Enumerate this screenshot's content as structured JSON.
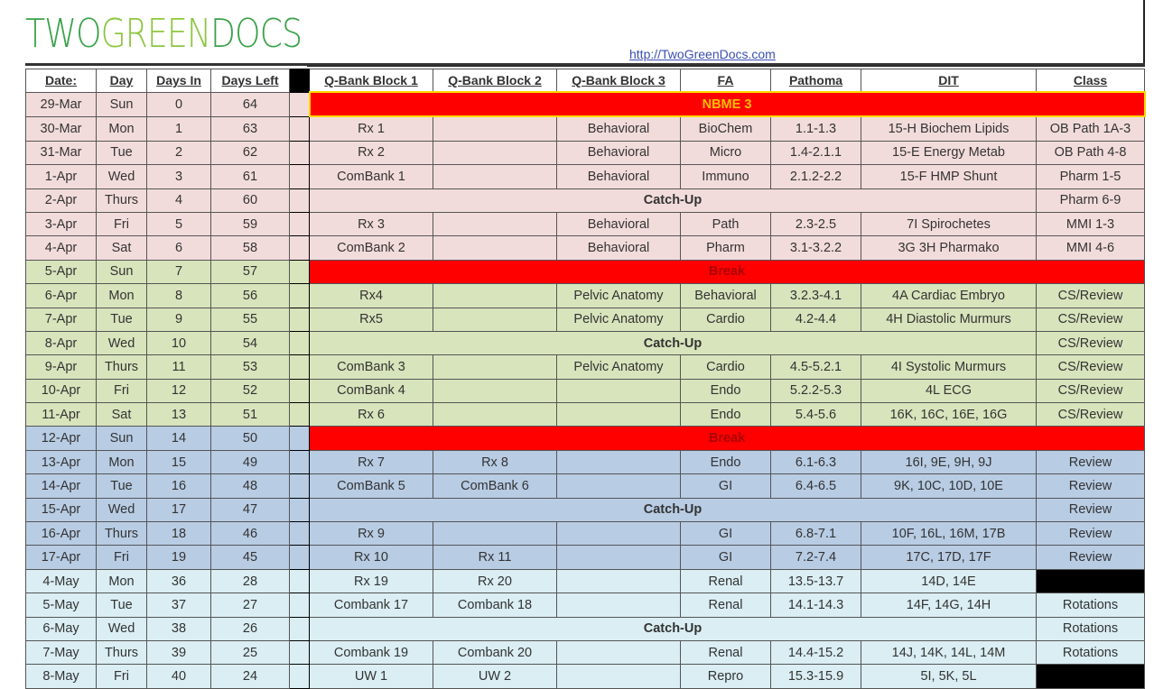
{
  "logo": {
    "part1": "TWO",
    "part2": "GREEN",
    "part3": "DOCS"
  },
  "link": "http://TwoGreenDocs.com",
  "headers": [
    "Date:",
    "Day",
    "Days In",
    "Days Left",
    "Q-Bank Block 1",
    "Q-Bank Block 2",
    "Q-Bank Block 3",
    "FA",
    "Pathoma",
    "DIT",
    "Class"
  ],
  "colors": {
    "pink": "#f2dcdb",
    "green": "#d8e4bc",
    "blue": "#b8cce4",
    "cyan": "#daeef3",
    "red": "#ff0000"
  },
  "rows": [
    {
      "theme": "pink",
      "date": "29-Mar",
      "day": "Sun",
      "in": "0",
      "left": "64",
      "span": {
        "type": "nbme",
        "label": "NBME 3"
      }
    },
    {
      "theme": "pink",
      "date": "30-Mar",
      "day": "Mon",
      "in": "1",
      "left": "63",
      "cells": [
        "Rx 1",
        "",
        "Behavioral",
        "BioChem",
        "1.1-1.3",
        "15-H Biochem Lipids",
        "OB Path 1A-3"
      ]
    },
    {
      "theme": "pink",
      "date": "31-Mar",
      "day": "Tue",
      "in": "2",
      "left": "62",
      "cells": [
        "Rx 2",
        "",
        "Behavioral",
        "Micro",
        "1.4-2.1.1",
        "15-E Energy Metab",
        "OB Path 4-8"
      ]
    },
    {
      "theme": "pink",
      "date": "1-Apr",
      "day": "Wed",
      "in": "3",
      "left": "61",
      "cells": [
        "ComBank 1",
        "",
        "Behavioral",
        "Immuno",
        "2.1.2-2.2",
        "15-F HMP Shunt",
        "Pharm 1-5"
      ]
    },
    {
      "theme": "pink",
      "date": "2-Apr",
      "day": "Thurs",
      "in": "4",
      "left": "60",
      "span": {
        "type": "catchup",
        "label": "Catch-Up"
      },
      "class": "Pharm 6-9"
    },
    {
      "theme": "pink",
      "date": "3-Apr",
      "day": "Fri",
      "in": "5",
      "left": "59",
      "cells": [
        "Rx 3",
        "",
        "Behavioral",
        "Path",
        "2.3-2.5",
        "7I Spirochetes",
        "MMI 1-3"
      ]
    },
    {
      "theme": "pink",
      "date": "4-Apr",
      "day": "Sat",
      "in": "6",
      "left": "58",
      "cells": [
        "ComBank 2",
        "",
        "Behavioral",
        "Pharm",
        "3.1-3.2.2",
        "3G 3H Pharmako",
        "MMI 4-6"
      ]
    },
    {
      "theme": "green",
      "date": "5-Apr",
      "day": "Sun",
      "in": "7",
      "left": "57",
      "span": {
        "type": "break",
        "label": "Break"
      }
    },
    {
      "theme": "green",
      "date": "6-Apr",
      "day": "Mon",
      "in": "8",
      "left": "56",
      "cells": [
        "Rx4",
        "",
        "Pelvic Anatomy",
        "Behavioral",
        "3.2.3-4.1",
        "4A Cardiac Embryo",
        "CS/Review"
      ]
    },
    {
      "theme": "green",
      "date": "7-Apr",
      "day": "Tue",
      "in": "9",
      "left": "55",
      "cells": [
        "Rx5",
        "",
        "Pelvic Anatomy",
        "Cardio",
        "4.2-4.4",
        "4H Diastolic Murmurs",
        "CS/Review"
      ]
    },
    {
      "theme": "green",
      "date": "8-Apr",
      "day": "Wed",
      "in": "10",
      "left": "54",
      "span": {
        "type": "catchup",
        "label": "Catch-Up"
      },
      "class": "CS/Review"
    },
    {
      "theme": "green",
      "date": "9-Apr",
      "day": "Thurs",
      "in": "11",
      "left": "53",
      "cells": [
        "ComBank 3",
        "",
        "Pelvic Anatomy",
        "Cardio",
        "4.5-5.2.1",
        "4I Systolic Murmurs",
        "CS/Review"
      ]
    },
    {
      "theme": "green",
      "date": "10-Apr",
      "day": "Fri",
      "in": "12",
      "left": "52",
      "cells": [
        "ComBank 4",
        "",
        "",
        "Endo",
        "5.2.2-5.3",
        "4L ECG",
        "CS/Review"
      ]
    },
    {
      "theme": "green",
      "date": "11-Apr",
      "day": "Sat",
      "in": "13",
      "left": "51",
      "cells": [
        "Rx 6",
        "",
        "",
        "Endo",
        "5.4-5.6",
        "16K, 16C, 16E, 16G",
        "CS/Review"
      ]
    },
    {
      "theme": "blue",
      "date": "12-Apr",
      "day": "Sun",
      "in": "14",
      "left": "50",
      "span": {
        "type": "break",
        "label": "Break"
      }
    },
    {
      "theme": "blue",
      "date": "13-Apr",
      "day": "Mon",
      "in": "15",
      "left": "49",
      "cells": [
        "Rx 7",
        "Rx 8",
        "",
        "Endo",
        "6.1-6.3",
        "16I, 9E, 9H, 9J",
        "Review"
      ]
    },
    {
      "theme": "blue",
      "date": "14-Apr",
      "day": "Tue",
      "in": "16",
      "left": "48",
      "cells": [
        "ComBank 5",
        "ComBank 6",
        "",
        "GI",
        "6.4-6.5",
        "9K, 10C, 10D, 10E",
        "Review"
      ]
    },
    {
      "theme": "blue",
      "date": "15-Apr",
      "day": "Wed",
      "in": "17",
      "left": "47",
      "span": {
        "type": "catchup",
        "label": "Catch-Up"
      },
      "class": "Review"
    },
    {
      "theme": "blue",
      "date": "16-Apr",
      "day": "Thurs",
      "in": "18",
      "left": "46",
      "cells": [
        "Rx 9",
        "",
        "",
        "GI",
        "6.8-7.1",
        "10F, 16L, 16M, 17B",
        "Review"
      ]
    },
    {
      "theme": "blue",
      "date": "17-Apr",
      "day": "Fri",
      "in": "19",
      "left": "45",
      "cells": [
        "Rx 10",
        "Rx 11",
        "",
        "GI",
        "7.2-7.4",
        "17C, 17D, 17F",
        "Review"
      ]
    },
    {
      "theme": "cyan",
      "date": "4-May",
      "day": "Mon",
      "in": "36",
      "left": "28",
      "cells": [
        "Rx 19",
        "Rx 20",
        "",
        "Renal",
        "13.5-13.7",
        "14D, 14E",
        null
      ]
    },
    {
      "theme": "cyan",
      "date": "5-May",
      "day": "Tue",
      "in": "37",
      "left": "27",
      "cells": [
        "Combank 17",
        "Combank 18",
        "",
        "Renal",
        "14.1-14.3",
        "14F, 14G, 14H",
        "Rotations"
      ]
    },
    {
      "theme": "cyan",
      "date": "6-May",
      "day": "Wed",
      "in": "38",
      "left": "26",
      "span": {
        "type": "catchup",
        "label": "Catch-Up"
      },
      "class": "Rotations"
    },
    {
      "theme": "cyan",
      "date": "7-May",
      "day": "Thurs",
      "in": "39",
      "left": "25",
      "cells": [
        "Combank 19",
        "Combank 20",
        "",
        "Renal",
        "14.4-15.2",
        "14J, 14K, 14L, 14M",
        "Rotations"
      ]
    },
    {
      "theme": "cyan",
      "date": "8-May",
      "day": "Fri",
      "in": "40",
      "left": "24",
      "cells": [
        "UW 1",
        "UW 2",
        "",
        "Repro",
        "15.3-15.9",
        "5I, 5K, 5L",
        null
      ]
    }
  ]
}
